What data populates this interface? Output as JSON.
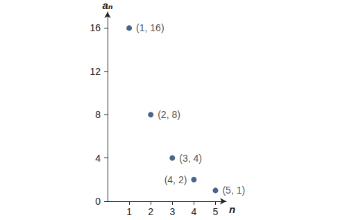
{
  "chart_data": {
    "type": "scatter",
    "x_label": "n",
    "y_label": "aₙ",
    "x": [
      1,
      2,
      3,
      4,
      5
    ],
    "values": [
      16,
      8,
      4,
      2,
      1
    ],
    "value_labels": [
      "(1, 16)",
      "(2, 8)",
      "(3, 4)",
      "(4, 2)",
      "(5, 1)"
    ],
    "data_labels": true,
    "color": "#1b3f6b",
    "marker": "circle",
    "xlim": [
      0,
      5.5
    ],
    "xticks": [
      1,
      2,
      3,
      4,
      5
    ],
    "ylim": [
      0,
      17.5
    ],
    "yticks": [
      0,
      4,
      8,
      12,
      16
    ],
    "grid": false
  }
}
